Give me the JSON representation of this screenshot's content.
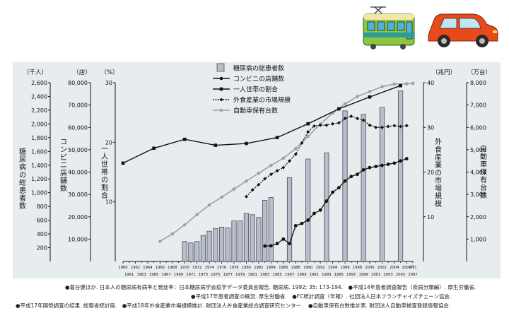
{
  "chart_data": {
    "type": "bar+line",
    "title": "",
    "axes": {
      "left1": {
        "unit": "（千人）",
        "label": "糖尿病の総患者数",
        "ticks": [
          "200",
          "400",
          "600",
          "800",
          "1,000",
          "1,200",
          "1,400",
          "1,600",
          "1,800",
          "2,000",
          "2,200",
          "2,400",
          "2,600"
        ],
        "ylim": [
          0,
          2600
        ]
      },
      "left2": {
        "unit": "（店）",
        "label": "コンビニ店舗数",
        "ticks": [
          "10,000",
          "20,000",
          "30,000",
          "40,000",
          "50,000",
          "60,000",
          "70,000",
          "80,000"
        ],
        "ylim": [
          0,
          80000
        ]
      },
      "left3": {
        "unit": "（%）",
        "label": "一人世帯の割合",
        "ticks": [
          "10",
          "20",
          "30"
        ],
        "ylim": [
          0,
          30
        ]
      },
      "right1": {
        "unit": "（兆円）",
        "label": "外食産業の市場規模",
        "ticks": [
          "10",
          "20",
          "30",
          "40"
        ],
        "ylim": [
          0,
          40
        ]
      },
      "right2": {
        "unit": "（万台）",
        "label": "自動車保有台数",
        "ticks": [
          "1,000",
          "2,000",
          "3,000",
          "4,000",
          "5,000",
          "6,000",
          "7,000",
          "8,000"
        ],
        "ylim": [
          0,
          8000
        ]
      }
    },
    "x_year_unit": "(年)",
    "x_ticks_top": [
      "1960",
      "1964",
      "1966",
      "1968",
      "1970",
      "1972",
      "1974",
      "1976",
      "1978",
      "1980",
      "1982",
      "1984",
      "1986",
      "1988",
      "1990",
      "1992",
      "1994",
      "1996",
      "1998",
      "2000",
      "2002",
      "2004",
      "2006"
    ],
    "x_ticks_bottom": [
      "1961",
      "1963",
      "1965",
      "1967",
      "1969",
      "1971",
      "1973",
      "1975",
      "1977",
      "1979",
      "1981",
      "1983",
      "1985",
      "1987",
      "1989",
      "1991",
      "1993",
      "1995",
      "1997",
      "1999",
      "2001",
      "2003",
      "2005",
      "2007"
    ],
    "x_tick_top_extra": [
      "1962"
    ],
    "x_range": [
      1960,
      2007
    ],
    "legend": [
      {
        "key": "patients",
        "label": "糖尿病の総患者数",
        "marker": "bar"
      },
      {
        "key": "stores",
        "label": "コンビニの店舗数",
        "marker": "dot-line"
      },
      {
        "key": "single",
        "label": "一人世帯の割合",
        "marker": "square-line"
      },
      {
        "key": "food",
        "label": "外食産業の市場規模",
        "marker": "diamond-dash"
      },
      {
        "key": "cars",
        "label": "自動車保有台数",
        "marker": "gray-dot-line"
      }
    ],
    "series": [
      {
        "key": "patients",
        "axis": "left1",
        "x": [
          1970,
          1971,
          1972,
          1973,
          1974,
          1975,
          1976,
          1977,
          1978,
          1979,
          1980,
          1981,
          1982,
          1983,
          1984,
          1987,
          1990,
          1993,
          1996,
          1999,
          2002,
          2005
        ],
        "values": [
          290,
          270,
          290,
          380,
          440,
          480,
          500,
          490,
          590,
          590,
          700,
          680,
          640,
          890,
          930,
          1220,
          1490,
          1580,
          2190,
          2140,
          2240,
          2480
        ]
      },
      {
        "key": "stores",
        "axis": "left2",
        "x": [
          1983,
          1984,
          1985,
          1986,
          1987,
          1988,
          1989,
          1990,
          1991,
          1992,
          1993,
          1994,
          1995,
          1996,
          1997,
          1998,
          1999,
          2000,
          2001,
          2002,
          2003,
          2004,
          2005,
          2006
        ],
        "values": [
          6900,
          7000,
          8000,
          10000,
          8000,
          16000,
          17000,
          18500,
          21500,
          23000,
          27000,
          31000,
          33000,
          36000,
          38000,
          39000,
          41000,
          42000,
          42500,
          43000,
          43500,
          44000,
          45000,
          46000
        ]
      },
      {
        "key": "single",
        "axis": "left3",
        "x": [
          1960,
          1965,
          1970,
          1975,
          1980,
          1985,
          1990,
          1995,
          2000,
          2005
        ],
        "values": [
          16.5,
          19.0,
          20.5,
          19.5,
          19.8,
          20.8,
          23.1,
          25.6,
          27.6,
          29.5
        ]
      },
      {
        "key": "food",
        "axis": "right1",
        "x": [
          1980,
          1981,
          1982,
          1983,
          1984,
          1985,
          1986,
          1987,
          1988,
          1989,
          1990,
          1991,
          1992,
          1993,
          1994,
          1995,
          1996,
          1997,
          1998,
          1999,
          2000,
          2001,
          2002,
          2003,
          2004,
          2005,
          2006
        ],
        "values": [
          14.5,
          16.0,
          17.2,
          18.5,
          19.5,
          20.3,
          21.0,
          22.5,
          24.0,
          26.5,
          29.0,
          30.3,
          30.5,
          30.5,
          30.8,
          31.0,
          32.0,
          32.5,
          32.0,
          31.6,
          30.5,
          30.0,
          30.0,
          30.2,
          30.4,
          30.2,
          30.4
        ]
      },
      {
        "key": "cars",
        "axis": "right2",
        "x": [
          1966,
          1968,
          1970,
          1972,
          1974,
          1976,
          1978,
          1980,
          1982,
          1984,
          1986,
          1988,
          1990,
          1992,
          1994,
          1996,
          1998,
          2000,
          2002,
          2004,
          2006,
          2007
        ],
        "values": [
          900,
          1230,
          1640,
          2100,
          2530,
          2880,
          3240,
          3600,
          3950,
          4300,
          4620,
          5050,
          5600,
          6150,
          6640,
          7050,
          7380,
          7600,
          7820,
          7940,
          7950,
          7970
        ]
      }
    ]
  },
  "sources": [
    "●葛谷健ほか. 日本人の糖尿病有病率と発症率：日本糖尿病学会疫学データ委員会報告. 糖尿病. 1992; 35: 173-194.　●平成14年患者調査報告（疾病分類編）. 厚生労働省.",
    "●平成17年患者調査の概況. 厚生労働省.　●FC統計調査〈年報〉. 社団法人日本フランチャイズチェーン協会.",
    "●平成17年国勢調査の結果. 総務省統計局.　●平成18年外食産業市場規模推計. 財団法人外食産業総合調査研究センター.　●自動車保有台数推計表. 財団法人自動車検査登録情報協会."
  ],
  "colors": {
    "panel": "#e7ecef",
    "bar_fill": "#b8bdc7",
    "bar_stroke": "#4a4f66",
    "black": "#111111",
    "gray_line": "#9aa0a6",
    "train_body": "#8cc63f",
    "train_band": "#2a9c9b",
    "car_body": "#e84a1b"
  },
  "icons": {
    "train": "train-icon",
    "car": "car-icon"
  }
}
